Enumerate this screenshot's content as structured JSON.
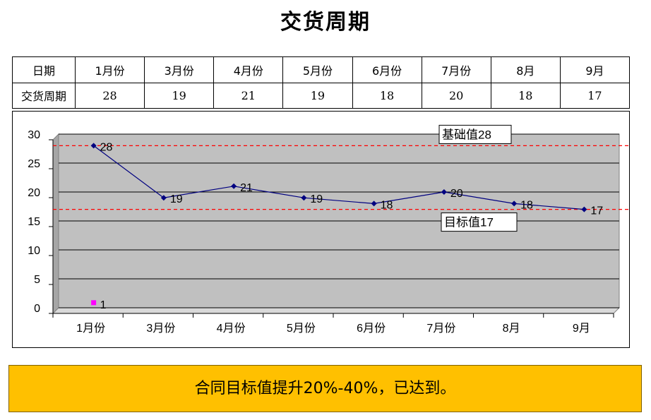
{
  "title": "交货周期",
  "table": {
    "row1_header": "日期",
    "row2_header": "交货周期",
    "months": [
      "1月份",
      "3月份",
      "4月份",
      "5月份",
      "6月份",
      "7月份",
      "8月",
      "9月"
    ],
    "values": [
      "28",
      "19",
      "21",
      "19",
      "18",
      "20",
      "18",
      "17"
    ]
  },
  "chart_data": {
    "type": "line",
    "categories": [
      "1月份",
      "3月份",
      "4月份",
      "5月份",
      "6月份",
      "7月份",
      "8月",
      "9月"
    ],
    "series": [
      {
        "values": [
          28,
          19,
          21,
          19,
          18,
          20,
          18,
          17
        ],
        "color": "#000080"
      }
    ],
    "extra_point": {
      "category": "1月份",
      "value": 1,
      "label": "1",
      "color": "#ff00ff"
    },
    "reference_lines": [
      {
        "value": 28,
        "label": "基础值28",
        "color": "#ff0000"
      },
      {
        "value": 17,
        "label": "目标值17",
        "color": "#ff0000"
      }
    ],
    "yticks": [
      "0",
      "5",
      "10",
      "15",
      "20",
      "25",
      "30"
    ],
    "ylim": [
      0,
      30
    ],
    "grid": true,
    "plot_background": "#c0c0c0"
  },
  "banner": {
    "text": "合同目标值提升20%-40%，已达到。",
    "color": "#ffc000"
  }
}
